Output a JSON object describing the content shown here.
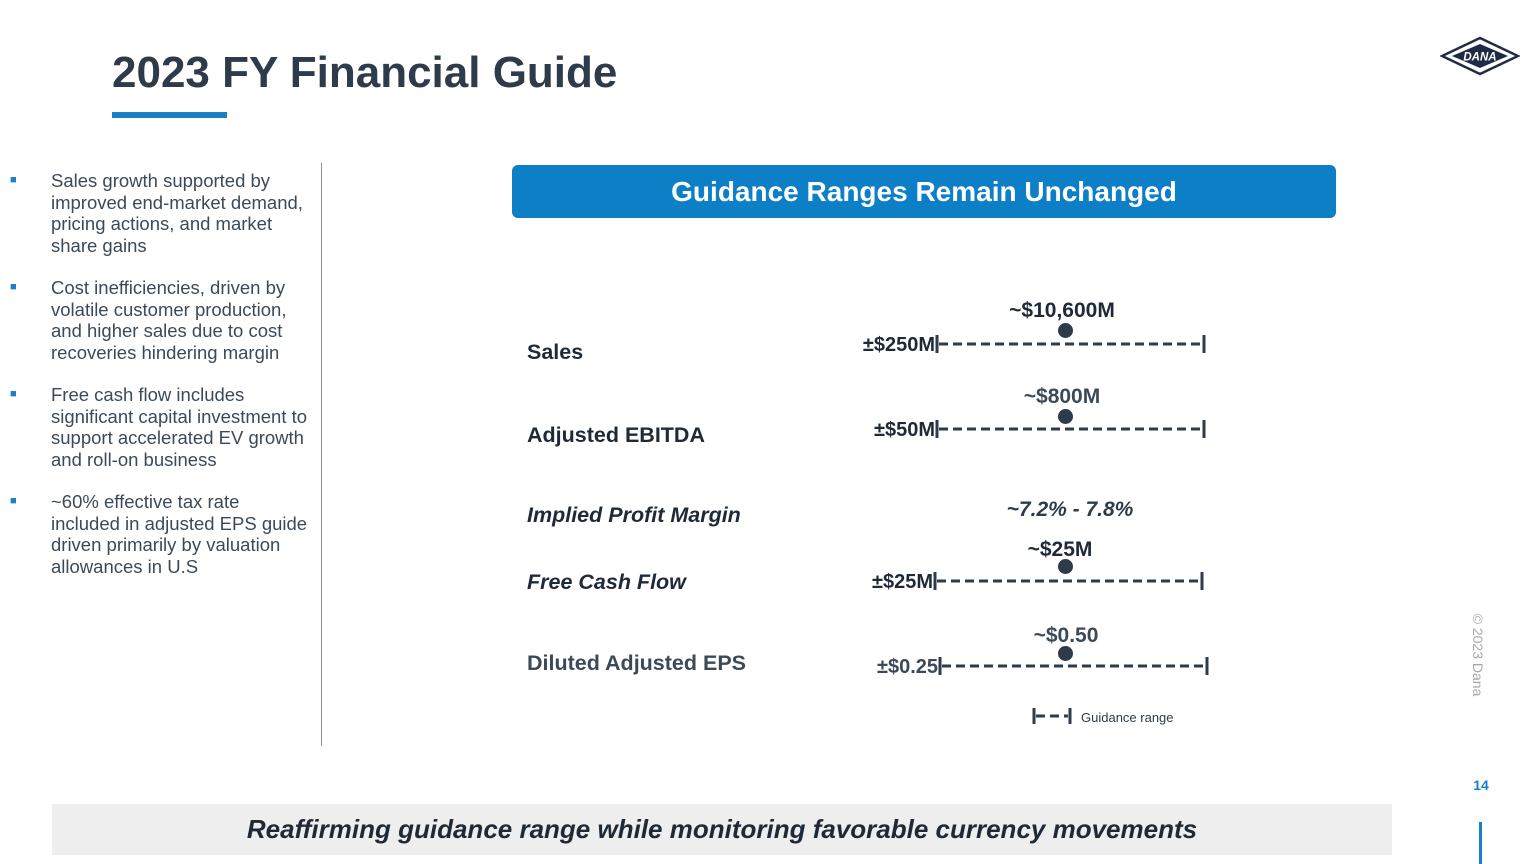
{
  "slide": {
    "title": "2023 FY Financial Guide",
    "page_number": "14",
    "copyright": "© 2023 Dana",
    "logo_text": "DANA"
  },
  "bullets": [
    "Sales growth supported by improved end-market demand, pricing actions, and market share gains",
    "Cost inefficiencies, driven by volatile customer production, and higher sales due to cost recoveries hindering margin",
    "Free cash flow includes significant capital investment to support accelerated EV growth and roll-on business",
    "~60% effective tax rate included in adjusted EPS guide driven primarily by valuation allowances in U.S"
  ],
  "banner": "Guidance Ranges Remain Unchanged",
  "guidance": {
    "sales": {
      "label": "Sales",
      "value": "~$10,600M",
      "tolerance": "±$250M"
    },
    "ebitda": {
      "label": "Adjusted EBITDA",
      "value": "~$800M",
      "tolerance": "±$50M"
    },
    "margin": {
      "label": "Implied Profit Margin",
      "value": "~7.2% - 7.8%"
    },
    "fcf": {
      "label": "Free Cash Flow",
      "value": "~$25M",
      "tolerance": "±$25M"
    },
    "eps": {
      "label": "Diluted Adjusted EPS",
      "value": "~$0.50",
      "tolerance": "±$0.25"
    }
  },
  "legend": {
    "label": "Guidance range"
  },
  "footer": "Reaffirming guidance range while monitoring favorable currency movements",
  "colors": {
    "accent": "#1a7fc4",
    "banner": "#0c7fc7",
    "title": "#2e3b4a",
    "footer_bg": "#eeeeee"
  }
}
